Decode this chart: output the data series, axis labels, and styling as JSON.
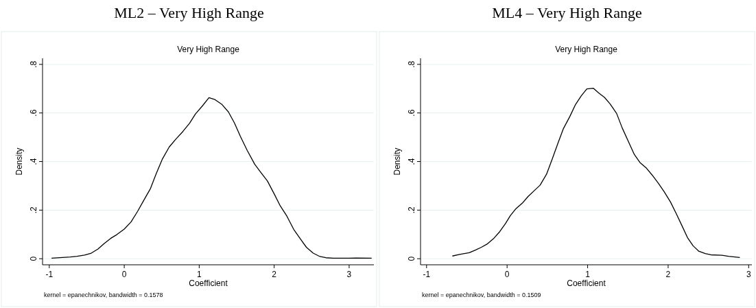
{
  "chart_data": [
    {
      "type": "line",
      "title": "ML2 – Very High Range",
      "subtitle": "Very High Range",
      "xlabel": "Coefficient",
      "ylabel": "Density",
      "annotations": [
        "kernel = epanechnikov, bandwidth = 0.1578"
      ],
      "xlim": [
        -1.09,
        3.33
      ],
      "xticks": [
        -1,
        0,
        1,
        2,
        3
      ],
      "ylim": [
        -0.025,
        0.825
      ],
      "yticks": [
        0,
        {
          "value": 0.2,
          "label": ".2"
        },
        {
          "value": 0.4,
          "label": ".4"
        },
        {
          "value": 0.6,
          "label": ".6"
        },
        {
          "value": 0.8,
          "label": ".8"
        }
      ],
      "grid": "y",
      "marker": "none",
      "line_style": "solid",
      "series": [
        {
          "color": "#000000",
          "x": [
            -0.97,
            -0.72,
            -0.63,
            -0.53,
            -0.44,
            -0.35,
            -0.27,
            -0.18,
            -0.1,
            0,
            0.09,
            0.18,
            0.26,
            0.35,
            0.43,
            0.51,
            0.6,
            0.69,
            0.78,
            0.87,
            0.95,
            1.04,
            1.13,
            1.21,
            1.3,
            1.39,
            1.47,
            1.55,
            1.64,
            1.74,
            1.82,
            1.91,
            2.0,
            2.08,
            2.17,
            2.26,
            2.35,
            2.43,
            2.52,
            2.61,
            2.69,
            2.79,
            3.0,
            3.09,
            3.3
          ],
          "values": [
            0.002,
            0.007,
            0.01,
            0.015,
            0.023,
            0.04,
            0.062,
            0.084,
            0.099,
            0.122,
            0.151,
            0.196,
            0.24,
            0.289,
            0.353,
            0.411,
            0.46,
            0.493,
            0.523,
            0.557,
            0.596,
            0.628,
            0.663,
            0.655,
            0.636,
            0.604,
            0.559,
            0.503,
            0.446,
            0.389,
            0.356,
            0.32,
            0.267,
            0.218,
            0.175,
            0.121,
            0.081,
            0.047,
            0.023,
            0.009,
            0.004,
            0.002,
            0.002,
            0.003,
            0.002
          ]
        }
      ]
    },
    {
      "type": "line",
      "title": "ML4 – Very High Range",
      "subtitle": "Very High Range",
      "xlabel": "Coefficient",
      "ylabel": "Density",
      "annotations": [
        "kernel = epanechnikov, bandwidth = 0.1509"
      ],
      "xlim": [
        -1.075,
        3.04
      ],
      "xticks": [
        -1,
        0,
        1,
        2,
        3
      ],
      "ylim": [
        -0.025,
        0.825
      ],
      "yticks": [
        0,
        {
          "value": 0.2,
          "label": ".2"
        },
        {
          "value": 0.4,
          "label": ".4"
        },
        {
          "value": 0.6,
          "label": ".6"
        },
        {
          "value": 0.8,
          "label": ".8"
        }
      ],
      "grid": "y",
      "marker": "none",
      "line_style": "solid",
      "series": [
        {
          "color": "#000000",
          "x": [
            -0.68,
            -0.59,
            -0.47,
            -0.39,
            -0.32,
            -0.25,
            -0.17,
            -0.09,
            -0.02,
            0.04,
            0.11,
            0.19,
            0.26,
            0.34,
            0.41,
            0.49,
            0.56,
            0.63,
            0.7,
            0.78,
            0.85,
            0.92,
            0.99,
            1.07,
            1.14,
            1.21,
            1.28,
            1.36,
            1.43,
            1.51,
            1.58,
            1.65,
            1.73,
            1.8,
            1.88,
            1.95,
            2.03,
            2.1,
            2.17,
            2.24,
            2.31,
            2.38,
            2.46,
            2.53,
            2.67,
            2.75,
            2.89
          ],
          "values": [
            0.011,
            0.018,
            0.025,
            0.036,
            0.047,
            0.06,
            0.082,
            0.112,
            0.145,
            0.177,
            0.206,
            0.229,
            0.256,
            0.281,
            0.303,
            0.348,
            0.41,
            0.474,
            0.536,
            0.586,
            0.635,
            0.67,
            0.699,
            0.702,
            0.682,
            0.664,
            0.637,
            0.598,
            0.538,
            0.48,
            0.429,
            0.396,
            0.373,
            0.345,
            0.31,
            0.276,
            0.233,
            0.186,
            0.137,
            0.087,
            0.053,
            0.031,
            0.021,
            0.016,
            0.014,
            0.01,
            0.005
          ]
        }
      ]
    }
  ]
}
